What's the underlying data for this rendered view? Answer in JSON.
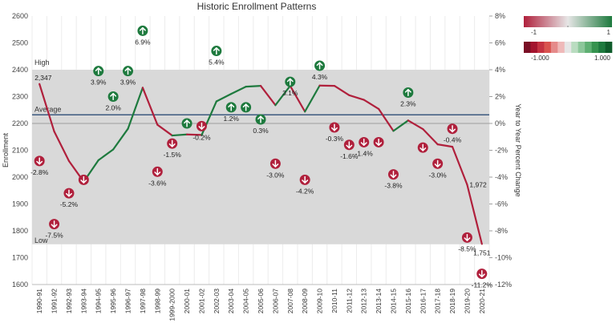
{
  "chart_data": {
    "type": "line",
    "title": "Historic Enrollment Patterns",
    "ylabel_left": "Enrollment",
    "ylabel_right": "Year to Year Percent Change",
    "ylim_left": [
      1600,
      2600
    ],
    "left_ticks": [
      "1600",
      "1700",
      "1800",
      "1900",
      "2000",
      "2100",
      "2200",
      "2300",
      "2400",
      "2500",
      "2600"
    ],
    "ylim_right": [
      -12,
      8
    ],
    "right_ticks": [
      "-12%",
      "-10%",
      "-8%",
      "-6%",
      "-4%",
      "-2%",
      "0%",
      "2%",
      "4%",
      "6%",
      "8%"
    ],
    "band": {
      "high": 2400,
      "low": 1750,
      "average": 2232,
      "high_label": "High",
      "low_label": "Low",
      "average_label": "Average"
    },
    "grid": true,
    "categories": [
      "1990-91",
      "1991-92",
      "1992-93",
      "1993-94",
      "1994-95",
      "1995-96",
      "1996-97",
      "1997-98",
      "1998-99",
      "1999-2000",
      "2000-01",
      "2001-02",
      "2002-03",
      "2003-04",
      "2004-05",
      "2005-06",
      "2006-07",
      "2007-08",
      "2008-09",
      "2009-10",
      "2010-11",
      "2011-12",
      "2012-13",
      "2013-14",
      "2014-15",
      "2015-16",
      "2016-17",
      "2017-18",
      "2018-19",
      "2019-20",
      "2020-21"
    ],
    "enrollment": [
      2347,
      2170,
      2060,
      1983,
      2063,
      2103,
      2180,
      2333,
      2195,
      2155,
      2159,
      2157,
      2282,
      2310,
      2337,
      2340,
      2268,
      2340,
      2244,
      2341,
      2340,
      2305,
      2288,
      2254,
      2172,
      2211,
      2179,
      2122,
      2113,
      1972,
      1751
    ],
    "enrollment_labels": [
      {
        "index": 0,
        "text": "2,347"
      },
      {
        "index": 29,
        "text": "1,972"
      },
      {
        "index": 30,
        "text": "1,751"
      }
    ],
    "pct_change": [
      -2.8,
      -7.5,
      -5.2,
      -4.2,
      3.9,
      2.0,
      3.9,
      6.9,
      -3.6,
      -1.5,
      0.0,
      -0.2,
      5.4,
      1.2,
      1.2,
      0.3,
      -3.0,
      3.1,
      -4.2,
      4.3,
      -0.3,
      -1.6,
      -1.4,
      -1.4,
      -3.8,
      2.3,
      -1.8,
      -3.0,
      -0.4,
      -8.5,
      -11.2
    ],
    "pct_labels": [
      "-2.8%",
      "-7.5%",
      "-5.2%",
      "",
      "3.9%",
      "2.0%",
      "3.9%",
      "6.9%",
      "-3.6%",
      "-1.5%",
      "",
      "-0.2%",
      "5.4%",
      "1.2%",
      "",
      "0.3%",
      "-3.0%",
      "3.1%",
      "-4.2%",
      "4.3%",
      "-0.3%",
      "-1.6%",
      "-1.4%",
      "",
      "-3.8%",
      "2.3%",
      "",
      "-3.0%",
      "-0.4%",
      "-8.5%",
      "-11.2%"
    ],
    "legend": {
      "gradient_min": "-1",
      "gradient_max": "1",
      "stepped_min": "-1.000",
      "stepped_max": "1.000"
    },
    "colors": {
      "up": "#1e7a3e",
      "down": "#b0203c",
      "band": "#d9d9d9",
      "average_line": "#3d5a80",
      "gridline": "#ececec"
    }
  }
}
